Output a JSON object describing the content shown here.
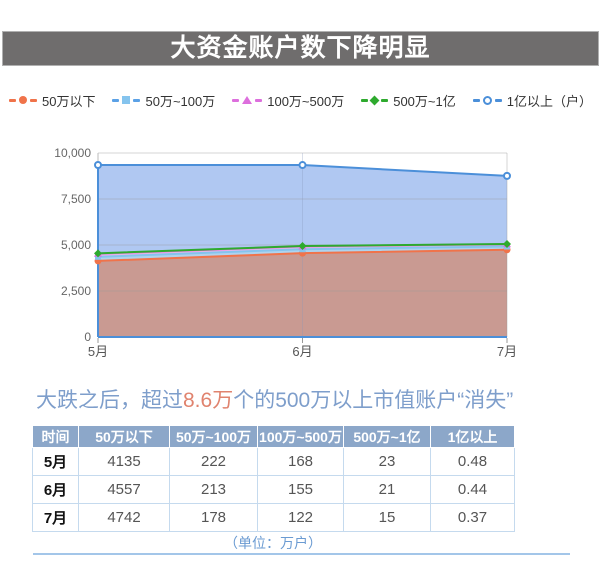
{
  "title_bar": {
    "text": "大资金账户数下降明显",
    "bg": "#6f6d6d",
    "text_color": "#ffffff"
  },
  "chart_data": {
    "type": "area",
    "stacked": true,
    "categories": [
      "5月",
      "6月",
      "7月"
    ],
    "series": [
      {
        "name": "50万以下",
        "values": [
          4135,
          4557,
          4742
        ],
        "stack_top": [
          4135,
          4557,
          4742
        ],
        "color": "#f0734a",
        "marker": "circle",
        "fill": "#c99a92"
      },
      {
        "name": "50万~100万",
        "values": [
          222,
          213,
          178
        ],
        "stack_top": [
          4357,
          4770,
          4920
        ],
        "color": "#85c4ee",
        "marker": "square",
        "fill": "#aed3ee",
        "legend_dash": "#5ba1e6"
      },
      {
        "name": "100万~500万",
        "values": [
          168,
          155,
          122
        ],
        "stack_top": [
          4525,
          4925,
          5042
        ],
        "color": "#dd6fdd",
        "marker": "triangle",
        "fill": "#e9b4e9"
      },
      {
        "name": "500万~1亿",
        "values": [
          23,
          21,
          15
        ],
        "stack_top": [
          4548,
          4946,
          5057
        ],
        "color": "#2eaa2e",
        "marker": "diamond",
        "fill": "#b9e0b9"
      },
      {
        "name": "1亿以上（户）",
        "values": [
          4800,
          4400,
          3700
        ],
        "stack_top": [
          9348,
          9346,
          8757
        ],
        "color": "#4b8fd9",
        "marker": "circle-open",
        "fill": "#b0c8f2",
        "plot_note": "series labelled 户: 0.48万户 plotted as 4800"
      }
    ],
    "ylim": [
      0,
      10000
    ],
    "yticks": [
      0,
      2500,
      5000,
      7500,
      10000
    ],
    "ytick_labels": [
      "0",
      "2,500",
      "5,000",
      "7,500",
      "10,000"
    ],
    "grid": true,
    "legend_position": "top",
    "axis_color": "#4b8fd9"
  },
  "subtitle": {
    "prefix": "大跌之后，超过",
    "highlight": "8.6万",
    "suffix": "个的500万以上市值账户“消失”",
    "text_color": "#7e9ecb",
    "highlight_color": "#e0836e"
  },
  "table": {
    "columns": [
      "时间",
      "50万以下",
      "50万~100万",
      "100万~500万",
      "500万~1亿",
      "1亿以上"
    ],
    "rows": [
      {
        "month": "5月",
        "values": [
          "4135",
          "222",
          "168",
          "23",
          "0.48"
        ]
      },
      {
        "month": "6月",
        "values": [
          "4557",
          "213",
          "155",
          "21",
          "0.44"
        ]
      },
      {
        "month": "7月",
        "values": [
          "4742",
          "178",
          "122",
          "15",
          "0.37"
        ]
      }
    ],
    "header_bg": "#8ca7c9"
  },
  "footer": {
    "unit_note": "（单位：万户）",
    "color": "#6b9bd2"
  }
}
